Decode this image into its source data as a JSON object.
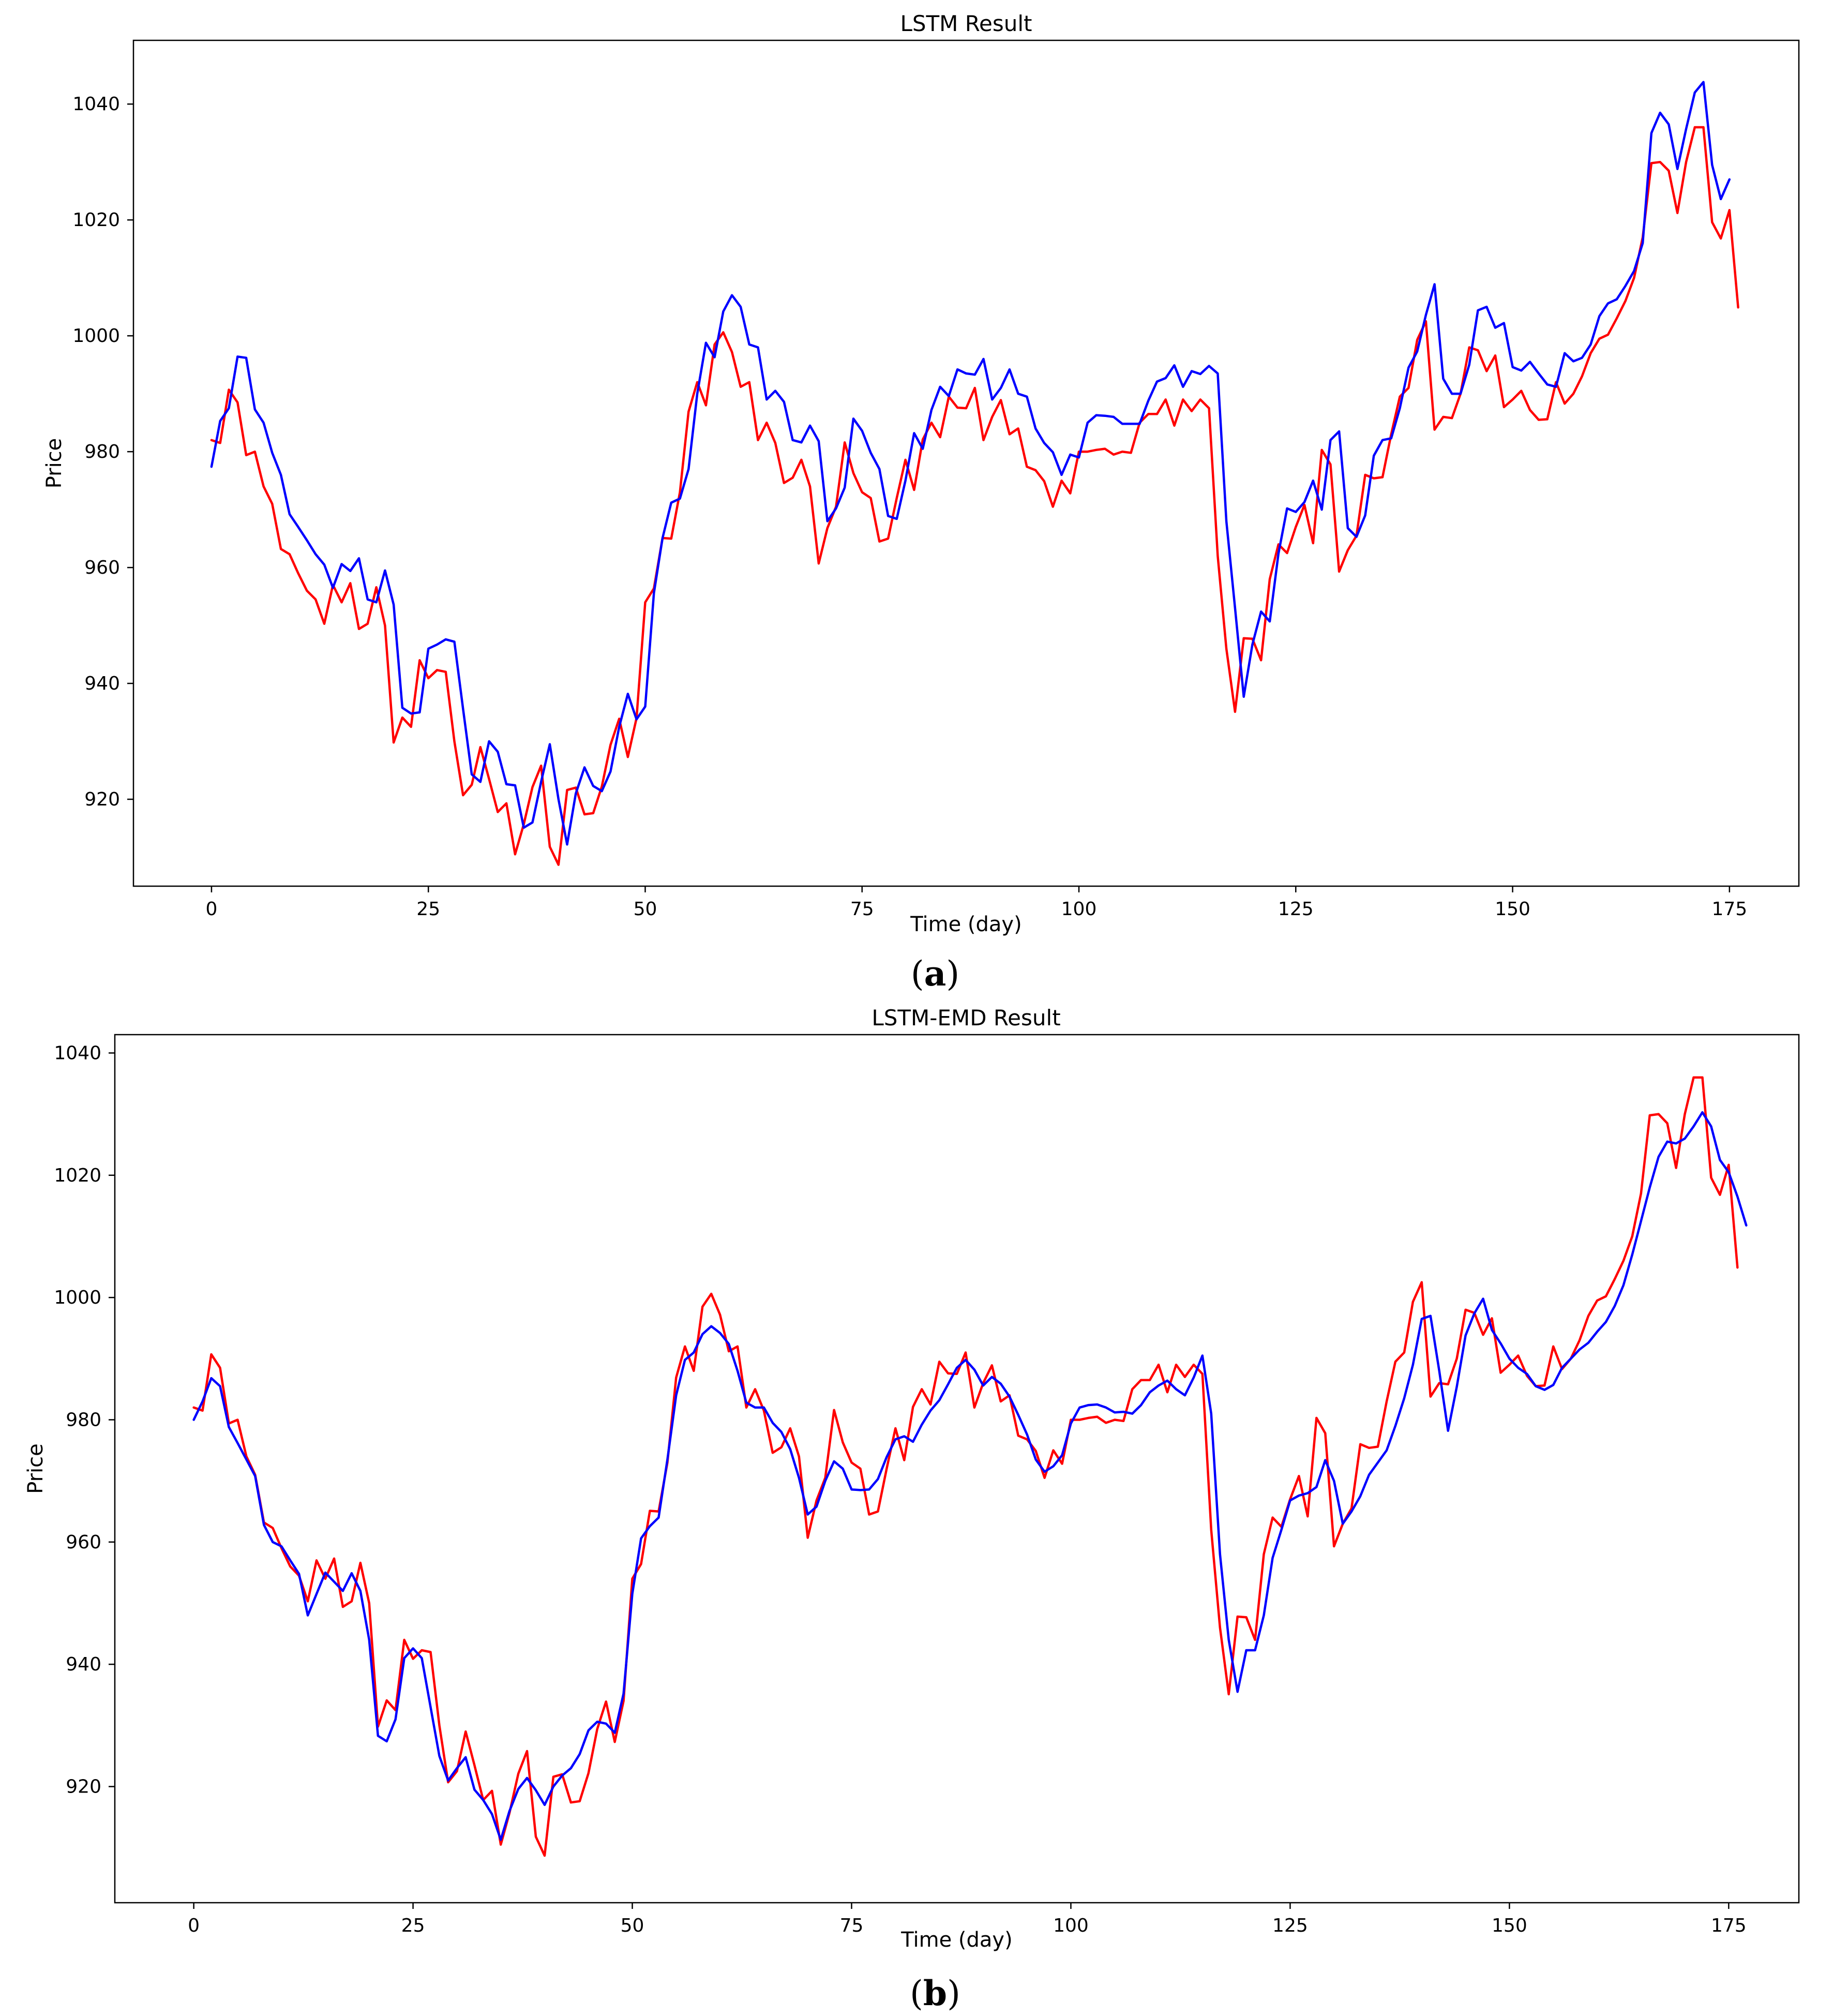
{
  "captions": [
    {
      "open": "(",
      "letter": "a",
      "close": ")"
    },
    {
      "open": "(",
      "letter": "b",
      "close": ")"
    }
  ],
  "series_colors": {
    "actual": "#ff0000",
    "predicted": "#0000ff"
  },
  "chart_data": [
    {
      "type": "line",
      "title": "LSTM Result",
      "xlabel": "Time (day)",
      "ylabel": "Price",
      "xlim": [
        -9,
        183
      ],
      "ylim": [
        905,
        1051
      ],
      "xticks": [
        0,
        25,
        50,
        75,
        100,
        125,
        150,
        175
      ],
      "yticks": [
        920,
        940,
        960,
        980,
        1000,
        1020,
        1040
      ],
      "grid": false,
      "series": [
        {
          "key": "actual",
          "values": [
            982.0,
            981.5,
            990.7,
            988.5,
            979.4,
            980.0,
            974.0,
            971.0,
            963.2,
            962.3,
            959.0,
            956.0,
            954.5,
            950.3,
            957.0,
            954.0,
            957.3,
            949.4,
            950.3,
            956.6,
            950.0,
            929.8,
            934.1,
            932.5,
            944.0,
            940.9,
            942.3,
            942.0,
            930.0,
            920.7,
            922.5,
            929.0,
            923.5,
            917.8,
            919.3,
            910.5,
            915.7,
            922.1,
            925.8,
            911.8,
            908.7,
            921.6,
            922.0,
            917.4,
            917.6,
            922.2,
            929.4,
            933.9,
            927.3,
            934.0,
            954.0,
            956.4,
            965.1,
            965.0,
            973.0,
            986.9,
            992.0,
            988.0,
            998.5,
            1000.6,
            997.2,
            991.2,
            992.0,
            982.0,
            985.0,
            981.5,
            974.6,
            975.5,
            978.6,
            974.0,
            960.7,
            966.8,
            970.5,
            981.6,
            976.3,
            973.0,
            972.0,
            964.5,
            965.0,
            972.0,
            978.6,
            973.4,
            982.1,
            985.0,
            982.5,
            989.5,
            987.6,
            987.5,
            991.0,
            982.0,
            986.0,
            988.9,
            983.0,
            984.0,
            977.4,
            976.8,
            974.9,
            970.5,
            975.0,
            972.8,
            980.0,
            980.0,
            980.3,
            980.5,
            979.5,
            980.0,
            979.8,
            985.0,
            986.5,
            986.5,
            989.0,
            984.5,
            989.0,
            987.0,
            989.0,
            987.5,
            962.0,
            946.0,
            935.1,
            947.8,
            947.7,
            944.0,
            958.0,
            964.0,
            962.5,
            967.0,
            970.8,
            964.2,
            980.3,
            977.8,
            959.3,
            963.0,
            965.5,
            976.0,
            975.4,
            975.6,
            983.0,
            989.5,
            991.0,
            999.3,
            1002.5,
            983.8,
            986.0,
            985.8,
            990.0,
            998.0,
            997.5,
            993.9,
            996.6,
            987.7,
            989.0,
            990.5,
            987.2,
            985.5,
            985.6,
            992.0,
            988.3,
            990.0,
            993.0,
            997.0,
            999.5,
            1000.2,
            1003.0,
            1006.0,
            1010.0,
            1017.0,
            1029.8,
            1030.0,
            1028.5,
            1021.2,
            1030.0,
            1036.0,
            1036.0,
            1019.6,
            1016.8,
            1021.7,
            1004.9
          ]
        },
        {
          "key": "predicted",
          "values": [
            977.4,
            985.3,
            987.5,
            996.4,
            996.2,
            987.3,
            985.0,
            979.8,
            976.0,
            969.2,
            967.0,
            964.7,
            962.3,
            960.5,
            956.5,
            960.6,
            959.4,
            961.6,
            954.5,
            954.0,
            959.5,
            953.6,
            935.8,
            934.8,
            935.0,
            946.0,
            946.7,
            947.6,
            947.2,
            935.6,
            924.3,
            923.0,
            930.0,
            928.2,
            922.6,
            922.4,
            915.1,
            916.0,
            923.0,
            929.5,
            920.0,
            912.2,
            921.0,
            925.5,
            922.3,
            921.4,
            924.8,
            932.5,
            938.2,
            933.8,
            936.0,
            955.6,
            965.1,
            971.2,
            971.9,
            977.0,
            990.0,
            998.8,
            996.3,
            1004.2,
            1007.0,
            1005.0,
            998.5,
            998.0,
            989.0,
            990.5,
            988.6,
            982.0,
            981.6,
            984.5,
            981.8,
            968.0,
            970.2,
            973.8,
            985.7,
            983.6,
            979.8,
            977.0,
            968.9,
            968.4,
            975.0,
            983.2,
            980.5,
            987.2,
            991.2,
            989.6,
            994.2,
            993.5,
            993.3,
            996.0,
            989.0,
            991.0,
            994.2,
            990.0,
            989.5,
            984.0,
            981.5,
            979.9,
            976.0,
            979.5,
            979.0,
            985.0,
            986.3,
            986.2,
            986.0,
            984.8,
            984.8,
            984.8,
            988.8,
            992.1,
            992.7,
            994.9,
            991.2,
            993.9,
            993.4,
            994.8,
            993.5,
            968.0,
            953.0,
            937.7,
            946.7,
            952.4,
            950.7,
            962.4,
            970.2,
            969.6,
            971.3,
            975.0,
            970.0,
            982.0,
            983.5,
            966.8,
            965.3,
            969.0,
            979.3,
            982.0,
            982.3,
            987.5,
            994.5,
            997.3,
            1003.6,
            1008.9,
            992.6,
            990.0,
            990.0,
            995.0,
            1004.4,
            1005.0,
            1001.4,
            1002.2,
            994.6,
            994.0,
            995.5,
            993.5,
            991.6,
            991.2,
            997.0,
            995.6,
            996.2,
            998.5,
            1003.4,
            1005.6,
            1006.3,
            1008.6,
            1011.2,
            1016.0,
            1035.0,
            1038.5,
            1036.5,
            1028.8,
            1035.7,
            1042.0,
            1043.8,
            1029.5,
            1023.6,
            1027.0
          ]
        }
      ]
    },
    {
      "type": "line",
      "title": "LSTM-EMD Result",
      "xlabel": "Time (day)",
      "ylabel": "Price",
      "xlim": [
        -9,
        183
      ],
      "ylim": [
        901,
        1043
      ],
      "xticks": [
        0,
        25,
        50,
        75,
        100,
        125,
        150,
        175
      ],
      "yticks": [
        920,
        940,
        960,
        980,
        1000,
        1020,
        1040
      ],
      "grid": false,
      "series": [
        {
          "key": "actual",
          "values": [
            982.0,
            981.5,
            990.7,
            988.5,
            979.4,
            980.0,
            974.0,
            971.0,
            963.2,
            962.3,
            959.0,
            956.0,
            954.5,
            950.3,
            957.0,
            954.0,
            957.3,
            949.4,
            950.3,
            956.6,
            950.0,
            929.8,
            934.1,
            932.5,
            944.0,
            940.9,
            942.3,
            942.0,
            930.0,
            920.7,
            922.5,
            929.0,
            923.5,
            917.8,
            919.3,
            910.5,
            915.7,
            922.1,
            925.8,
            911.8,
            908.7,
            921.6,
            922.0,
            917.4,
            917.6,
            922.2,
            929.4,
            933.9,
            927.3,
            934.0,
            954.0,
            956.4,
            965.1,
            965.0,
            973.0,
            986.9,
            992.0,
            988.0,
            998.5,
            1000.6,
            997.2,
            991.2,
            992.0,
            982.0,
            985.0,
            981.5,
            974.6,
            975.5,
            978.6,
            974.0,
            960.7,
            966.8,
            970.5,
            981.6,
            976.3,
            973.0,
            972.0,
            964.5,
            965.0,
            972.0,
            978.6,
            973.4,
            982.1,
            985.0,
            982.5,
            989.5,
            987.6,
            987.5,
            991.0,
            982.0,
            986.0,
            988.9,
            983.0,
            984.0,
            977.4,
            976.8,
            974.9,
            970.5,
            975.0,
            972.8,
            980.0,
            980.0,
            980.3,
            980.5,
            979.5,
            980.0,
            979.8,
            985.0,
            986.5,
            986.5,
            989.0,
            984.5,
            989.0,
            987.0,
            989.0,
            987.5,
            962.0,
            946.0,
            935.1,
            947.8,
            947.7,
            944.0,
            958.0,
            964.0,
            962.5,
            967.0,
            970.8,
            964.2,
            980.3,
            977.8,
            959.3,
            963.0,
            965.5,
            976.0,
            975.4,
            975.6,
            983.0,
            989.5,
            991.0,
            999.3,
            1002.5,
            983.8,
            986.0,
            985.8,
            990.0,
            998.0,
            997.5,
            993.9,
            996.6,
            987.7,
            989.0,
            990.5,
            987.2,
            985.5,
            985.6,
            992.0,
            988.3,
            990.0,
            993.0,
            997.0,
            999.5,
            1000.2,
            1003.0,
            1006.0,
            1010.0,
            1017.0,
            1029.8,
            1030.0,
            1028.5,
            1021.2,
            1030.0,
            1036.0,
            1036.0,
            1019.6,
            1016.8,
            1021.7,
            1004.9
          ]
        },
        {
          "key": "predicted",
          "values": [
            980.0,
            983.0,
            986.8,
            985.5,
            978.8,
            976.2,
            973.5,
            970.8,
            962.8,
            960.0,
            959.3,
            957.0,
            954.8,
            948.0,
            951.5,
            955.0,
            953.5,
            952.0,
            954.9,
            952.0,
            944.0,
            928.3,
            927.4,
            931.0,
            941.0,
            942.6,
            941.0,
            933.0,
            925.0,
            921.0,
            923.0,
            924.8,
            919.5,
            917.8,
            915.5,
            911.3,
            916.0,
            919.6,
            921.4,
            919.4,
            917.0,
            920.0,
            921.8,
            923.0,
            925.3,
            929.2,
            930.6,
            930.3,
            928.8,
            935.2,
            951.5,
            960.6,
            962.6,
            964.0,
            973.5,
            984.0,
            989.8,
            991.0,
            994.0,
            995.3,
            994.2,
            992.4,
            988.0,
            982.8,
            982.0,
            982.0,
            979.5,
            978.0,
            975.2,
            970.5,
            964.5,
            965.8,
            970.0,
            973.2,
            972.0,
            968.6,
            968.5,
            968.6,
            970.3,
            973.9,
            976.8,
            977.3,
            976.4,
            979.2,
            981.5,
            983.2,
            985.8,
            988.5,
            989.8,
            988.2,
            985.6,
            987.0,
            985.9,
            983.8,
            980.8,
            977.6,
            973.5,
            971.5,
            972.4,
            974.2,
            979.4,
            982.0,
            982.4,
            982.5,
            982.0,
            981.2,
            981.3,
            981.0,
            982.4,
            984.5,
            985.6,
            986.4,
            985.0,
            984.0,
            986.9,
            990.5,
            981.0,
            958.0,
            944.0,
            935.5,
            942.3,
            942.3,
            948.0,
            957.4,
            962.0,
            966.8,
            967.6,
            968.0,
            969.0,
            973.4,
            970.0,
            963.0,
            965.0,
            967.5,
            971.0,
            973.0,
            975.0,
            979.0,
            983.5,
            989.0,
            996.5,
            997.0,
            988.0,
            978.2,
            985.4,
            993.8,
            997.4,
            999.8,
            994.7,
            992.5,
            990.0,
            988.5,
            987.5,
            985.5,
            984.9,
            985.7,
            988.5,
            990.0,
            991.5,
            992.6,
            994.4,
            996.0,
            998.6,
            1002.0,
            1007.0,
            1012.5,
            1018.0,
            1023.0,
            1025.5,
            1025.2,
            1026.0,
            1028.0,
            1030.3,
            1028.0,
            1022.5,
            1020.5,
            1016.5,
            1011.8
          ]
        }
      ]
    }
  ]
}
